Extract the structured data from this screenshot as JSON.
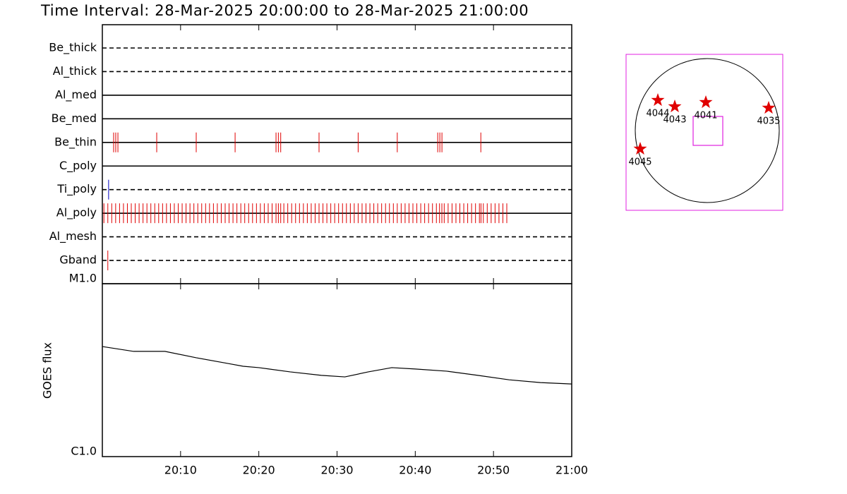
{
  "title": "Time Interval: 28-Mar-2025 20:00:00 to 28-Mar-2025 21:00:00",
  "chart_data": [
    {
      "type": "timeline",
      "xlim": [
        0,
        60
      ],
      "series": [
        {
          "name": "Be_thick",
          "style": "dashed",
          "color": "#e00000",
          "values": []
        },
        {
          "name": "Al_thick",
          "style": "dashed",
          "color": "#e00000",
          "values": []
        },
        {
          "name": "Al_med",
          "style": "solid",
          "color": "#e00000",
          "values": []
        },
        {
          "name": "Be_med",
          "style": "solid",
          "color": "#e00000",
          "values": []
        },
        {
          "name": "Be_thin",
          "style": "solid",
          "color": "#e00000",
          "values": [
            1.44,
            1.71,
            1.99,
            6.95,
            12.0,
            16.97,
            22.2,
            22.5,
            22.8,
            27.7,
            32.7,
            37.7,
            42.87,
            43.14,
            43.41,
            48.38
          ]
        },
        {
          "name": "C_poly",
          "style": "solid",
          "color": "#e00000",
          "values": []
        },
        {
          "name": "Ti_poly",
          "style": "dashed",
          "color": "#0000c0",
          "values": [
            0.8
          ]
        },
        {
          "name": "Al_poly",
          "style": "solid",
          "color": "#e00000",
          "values": [
            0.2,
            0.7,
            1.2,
            1.7,
            2.2,
            2.7,
            3.2,
            3.7,
            4.2,
            4.7,
            5.2,
            5.7,
            6.2,
            6.7,
            7.2,
            7.7,
            8.2,
            8.7,
            9.2,
            9.7,
            10.2,
            10.7,
            11.2,
            11.7,
            12.2,
            12.7,
            13.2,
            13.7,
            14.2,
            14.7,
            15.2,
            15.7,
            16.2,
            16.7,
            17.2,
            17.7,
            18.2,
            18.7,
            19.2,
            19.7,
            20.2,
            20.7,
            21.2,
            21.7,
            22.2,
            22.5,
            22.8,
            23.2,
            23.7,
            24.2,
            24.7,
            25.2,
            25.7,
            26.2,
            26.7,
            27.2,
            27.7,
            28.2,
            28.7,
            29.2,
            29.7,
            30.2,
            30.7,
            31.2,
            31.7,
            32.2,
            32.7,
            33.2,
            33.7,
            34.2,
            34.7,
            35.2,
            35.7,
            36.2,
            36.7,
            37.2,
            37.7,
            38.2,
            38.7,
            39.2,
            39.7,
            40.2,
            40.7,
            41.2,
            41.7,
            42.2,
            42.7,
            43.1,
            43.4,
            43.7,
            44.2,
            44.7,
            45.2,
            45.7,
            46.2,
            46.7,
            47.2,
            47.7,
            48.2,
            48.4,
            48.7,
            49.2,
            49.7,
            50.2,
            50.7,
            51.2,
            51.7
          ]
        },
        {
          "name": "Al_mesh",
          "style": "dashed",
          "color": "#e00000",
          "values": []
        },
        {
          "name": "Gband",
          "style": "dashed",
          "color": "#e00000",
          "values": [
            0.7
          ]
        }
      ]
    },
    {
      "type": "line",
      "ylabel": "GOES flux",
      "log_scale": true,
      "color": "#000000",
      "xlim": [
        0,
        60
      ],
      "xticks": [
        {
          "value": 10,
          "label": "20:10"
        },
        {
          "value": 20,
          "label": "20:20"
        },
        {
          "value": 30,
          "label": "20:30"
        },
        {
          "value": 40,
          "label": "20:40"
        },
        {
          "value": 50,
          "label": "20:50"
        },
        {
          "value": 60,
          "label": "21:00"
        }
      ],
      "ylim": [
        1e-06,
        1e-05
      ],
      "yticks": [
        {
          "value": 1e-06,
          "label": "C1.0"
        },
        {
          "value": 1e-05,
          "label": "M1.0"
        }
      ],
      "x": [
        0,
        4,
        8,
        12,
        16,
        18,
        20,
        24,
        28,
        31,
        34,
        37,
        40,
        44,
        48,
        52,
        56,
        60
      ],
      "values": [
        4.33e-06,
        4.06e-06,
        4.06e-06,
        3.73e-06,
        3.46e-06,
        3.33e-06,
        3.27e-06,
        3.09e-06,
        2.95e-06,
        2.89e-06,
        3.09e-06,
        3.27e-06,
        3.21e-06,
        3.12e-06,
        2.95e-06,
        2.78e-06,
        2.68e-06,
        2.63e-06
      ]
    }
  ],
  "sun_map": {
    "regions": [
      "4044",
      "4043",
      "4041",
      "4035",
      "4045"
    ]
  }
}
